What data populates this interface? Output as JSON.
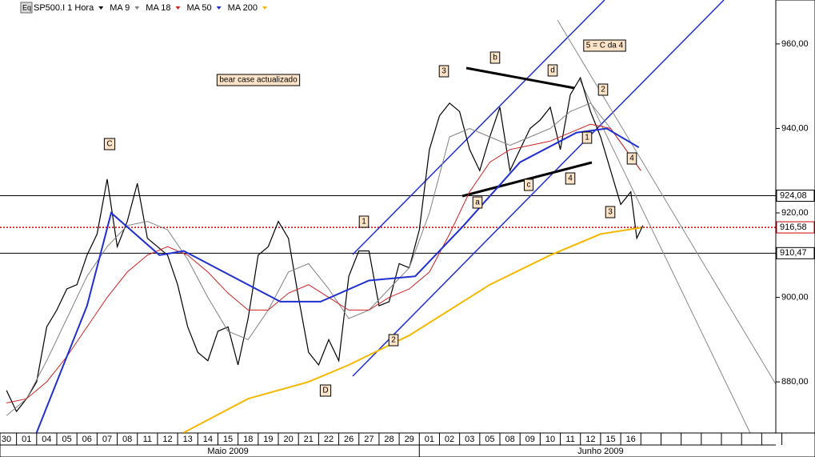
{
  "chart_data": {
    "type": "line",
    "title": "SP500.I 1 Hora",
    "icon_label": "Eq",
    "categories": [
      "30",
      "01",
      "04",
      "05",
      "06",
      "07",
      "08",
      "11",
      "12",
      "13",
      "14",
      "15",
      "18",
      "19",
      "20",
      "21",
      "22",
      "26",
      "27",
      "28",
      "29",
      "01",
      "02",
      "03",
      "05",
      "08",
      "09",
      "10",
      "11",
      "12",
      "15",
      "16",
      null,
      null,
      null,
      null,
      null,
      null,
      null
    ],
    "months": [
      {
        "label": "Maio 2009",
        "at": 11
      },
      {
        "label": "Junho 2009",
        "at": 29.5
      }
    ],
    "xlim": [
      -0.32,
      38.2
    ],
    "ylim": [
      867.9,
      970.4
    ],
    "yticks": [
      {
        "value": 880,
        "label": "880,00"
      },
      {
        "value": 900,
        "label": "900,00"
      },
      {
        "value": 920,
        "label": "920,00"
      },
      {
        "value": 940,
        "label": "940,00"
      },
      {
        "value": 960,
        "label": "960,00"
      }
    ],
    "series": [
      {
        "name": "SP500.I 1 Hora",
        "color": "#000000",
        "x": [
          0,
          0.5,
          1,
          1.5,
          2,
          2.5,
          3,
          3.5,
          4,
          4.5,
          5,
          5.5,
          6,
          6.5,
          7,
          7.5,
          8,
          8.5,
          9,
          9.5,
          10,
          10.5,
          11,
          11.5,
          12,
          12.5,
          13,
          13.5,
          14,
          14.5,
          15,
          15.5,
          16,
          16.5,
          17,
          17.5,
          18,
          18.5,
          19,
          19.5,
          20,
          20.5,
          21,
          21.5,
          22,
          22.5,
          23,
          23.5,
          24,
          24.5,
          25,
          25.5,
          26,
          26.5,
          27,
          27.5,
          28,
          28.5,
          29,
          29.5,
          30,
          30.5,
          31,
          31.3,
          31.6
        ],
        "values": [
          878,
          873,
          876,
          880,
          893,
          897,
          902,
          903,
          910,
          915,
          928,
          912,
          918,
          927,
          914,
          912,
          910,
          903,
          893,
          887,
          885,
          892,
          893,
          884,
          895,
          910,
          912,
          918,
          914,
          900,
          887,
          884,
          890,
          885,
          905,
          911,
          911,
          898,
          899,
          908,
          907,
          916,
          935,
          943,
          946,
          944,
          935,
          930,
          938,
          945,
          930,
          935,
          940,
          942,
          945,
          935,
          948,
          952,
          944,
          938,
          930,
          922,
          925,
          914,
          917
        ]
      },
      {
        "name": "MA 9",
        "color": "#808080",
        "x": [
          0,
          1,
          2,
          3,
          4,
          5,
          6,
          7,
          8,
          9,
          10,
          11,
          12,
          13,
          14,
          15,
          16,
          17,
          18,
          19,
          20,
          21,
          22,
          23,
          24,
          25,
          26,
          27,
          28,
          29,
          30,
          31.5
        ],
        "values": [
          872,
          876,
          885,
          895,
          905,
          912,
          917,
          918,
          916,
          909,
          900,
          892,
          890,
          897,
          906,
          908,
          902,
          895,
          897,
          902,
          907,
          920,
          938,
          940,
          938,
          936,
          938,
          940,
          944,
          946,
          940,
          930
        ]
      },
      {
        "name": "MA 18",
        "color": "#cc2222",
        "x": [
          0,
          1,
          2,
          3,
          4,
          5,
          6,
          7,
          8,
          9,
          10,
          11,
          12,
          13,
          14,
          15,
          16,
          17,
          18,
          19,
          20,
          21,
          22,
          23,
          24,
          25,
          26,
          27,
          28,
          29,
          30,
          31.5
        ],
        "values": [
          875,
          876,
          880,
          886,
          893,
          900,
          906,
          910,
          912,
          910,
          906,
          901,
          897,
          897,
          901,
          903,
          900,
          897,
          897,
          900,
          902,
          906,
          915,
          925,
          932,
          935,
          936,
          937,
          939,
          941,
          940,
          930
        ]
      },
      {
        "name": "MA 50",
        "color": "#1f2fd0",
        "x": [
          1.5,
          4,
          5.2,
          7.6,
          8.8,
          11.6,
          13.6,
          15.6,
          18,
          20.3,
          22.7,
          25.5,
          28.3,
          29.8,
          31.4
        ],
        "values": [
          868,
          898,
          920,
          910,
          911,
          904,
          899,
          899,
          904,
          905,
          917,
          932,
          939,
          940,
          935.5
        ]
      },
      {
        "name": "MA 200",
        "color": "#f5b800",
        "x": [
          8.8,
          12,
          15,
          17,
          20,
          24,
          27,
          29.5,
          31.5
        ],
        "values": [
          868,
          876,
          880,
          884,
          891,
          903,
          910,
          915,
          916.5
        ]
      }
    ],
    "levels": [
      {
        "value": 924.08,
        "label": "924,08",
        "color": "#000000",
        "style": "solid"
      },
      {
        "value": 916.58,
        "label": "916,58",
        "color": "#cc0000",
        "style": "dotted"
      },
      {
        "value": 910.47,
        "label": "910,47",
        "color": "#000000",
        "style": "solid"
      }
    ],
    "annotations": [
      "bear case actualizado",
      "C",
      "D",
      "1",
      "2",
      "3",
      "a",
      "b",
      "c",
      "d",
      "4",
      "5 = C da 4",
      "2",
      "1",
      "4",
      "3"
    ]
  }
}
